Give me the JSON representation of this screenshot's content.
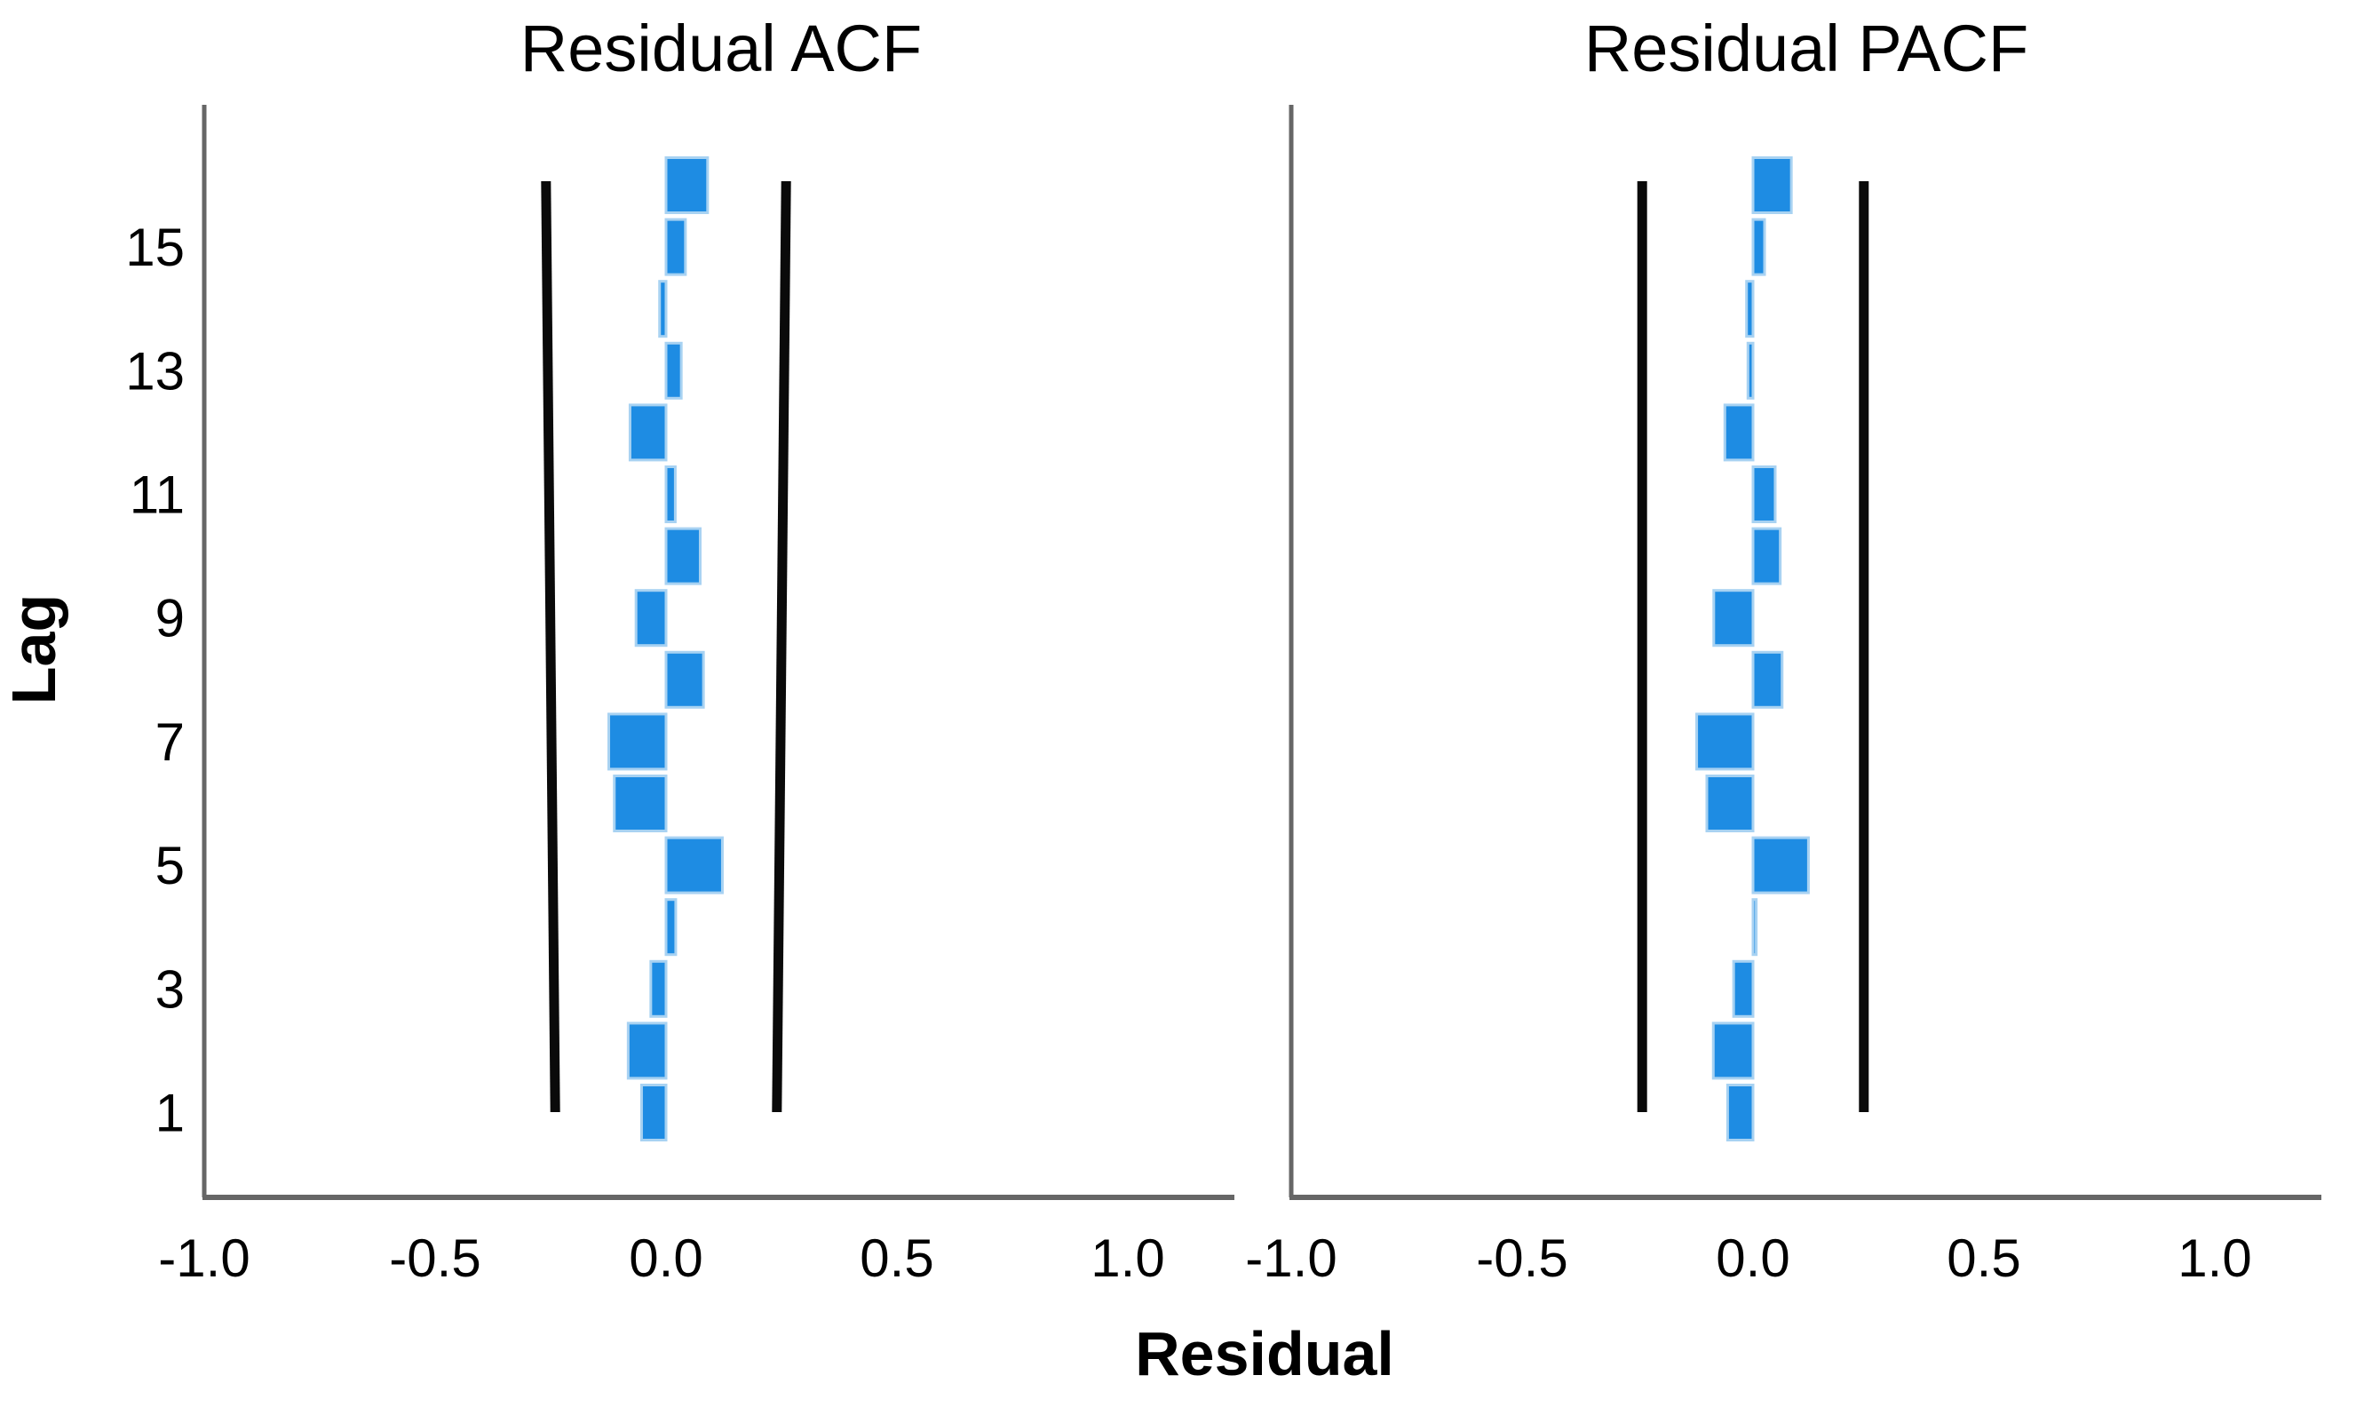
{
  "figure": {
    "titles": {
      "acf": "Residual ACF",
      "pacf": "Residual PACF"
    },
    "xlabel": "Residual",
    "ylabel": "Lag"
  },
  "colors": {
    "bar_fill": "#1E8CE3",
    "bar_border": "#A8D2F2",
    "ci_line": "#0A0A0A",
    "axis_line": "#666666",
    "text": "#000000",
    "background": "#FFFFFF"
  },
  "chart_data": [
    {
      "type": "bar",
      "orientation": "horizontal",
      "title": "Residual ACF",
      "xlabel": "Residual",
      "ylabel": "Lag",
      "xlim": [
        -1.0,
        1.0
      ],
      "x_tick_labels": [
        "-1.0",
        "-0.5",
        "0.0",
        "0.5",
        "1.0"
      ],
      "x_tick_values": [
        -1.0,
        -0.5,
        0.0,
        0.5,
        1.0
      ],
      "lags": [
        1,
        2,
        3,
        4,
        5,
        6,
        7,
        8,
        9,
        10,
        11,
        12,
        13,
        14,
        15,
        16
      ],
      "y_tick_labels": [
        "1",
        "3",
        "5",
        "7",
        "9",
        "11",
        "13",
        "15"
      ],
      "y_tick_lags": [
        1,
        3,
        5,
        7,
        9,
        11,
        13,
        15
      ],
      "values": [
        -0.053,
        -0.082,
        -0.033,
        0.021,
        0.122,
        -0.112,
        -0.124,
        0.081,
        -0.065,
        0.074,
        0.02,
        -0.078,
        0.033,
        -0.014,
        0.042,
        0.09
      ],
      "confidence_limits": {
        "half_width_at_lag1": 0.24,
        "half_width_at_lag16": 0.26
      },
      "grid": false,
      "legend": "none"
    },
    {
      "type": "bar",
      "orientation": "horizontal",
      "title": "Residual PACF",
      "xlabel": "Residual",
      "ylabel": "Lag",
      "xlim": [
        -1.0,
        1.0
      ],
      "x_tick_labels": [
        "-1.0",
        "-0.5",
        "0.0",
        "0.5",
        "1.0"
      ],
      "x_tick_values": [
        -1.0,
        -0.5,
        0.0,
        0.5,
        1.0
      ],
      "lags": [
        1,
        2,
        3,
        4,
        5,
        6,
        7,
        8,
        9,
        10,
        11,
        12,
        13,
        14,
        15,
        16
      ],
      "y_tick_labels": [],
      "y_tick_lags": [],
      "values": [
        -0.055,
        -0.086,
        -0.042,
        0.007,
        0.12,
        -0.1,
        -0.122,
        0.063,
        -0.085,
        0.059,
        0.048,
        -0.061,
        -0.011,
        -0.014,
        0.025,
        0.083
      ],
      "confidence_limits": {
        "half_width_at_lag1": 0.24,
        "half_width_at_lag16": 0.24
      },
      "grid": false,
      "legend": "none"
    }
  ]
}
